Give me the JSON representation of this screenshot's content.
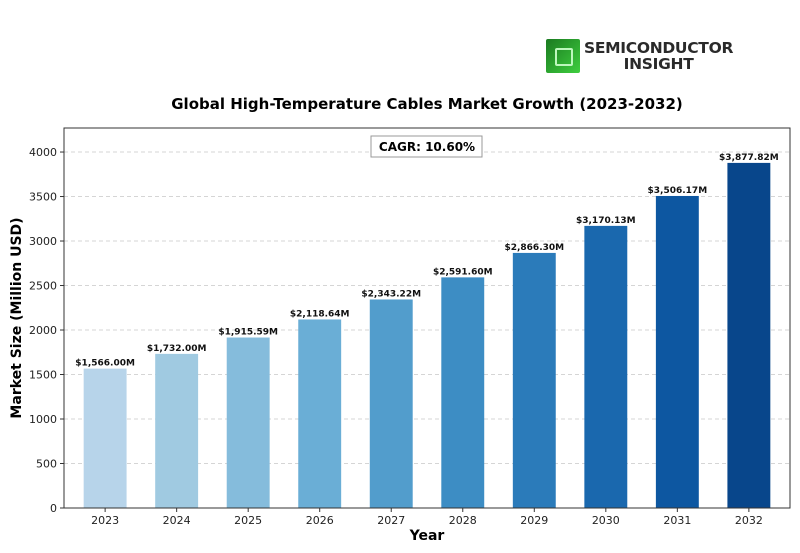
{
  "logo": {
    "line1": "SEMICONDUCTOR",
    "line2": "INSIGHT"
  },
  "chart_data": {
    "type": "bar",
    "title": "Global High-Temperature Cables Market Growth (2023-2032)",
    "xlabel": "Year",
    "ylabel": "Market Size (Million USD)",
    "categories": [
      "2023",
      "2024",
      "2025",
      "2026",
      "2027",
      "2028",
      "2029",
      "2030",
      "2031",
      "2032"
    ],
    "values": [
      1566.0,
      1732.0,
      1915.59,
      2118.64,
      2343.22,
      2591.6,
      2866.3,
      3170.13,
      3506.17,
      3877.82
    ],
    "data_labels": [
      "$1,566.00M",
      "$1,732.00M",
      "$1,915.59M",
      "$2,118.64M",
      "$2,343.22M",
      "$2,591.60M",
      "$2,866.30M",
      "$3,170.13M",
      "$3,506.17M",
      "$3,877.82M"
    ],
    "bar_colors": [
      "#b7d4ea",
      "#a0cae1",
      "#85bcdc",
      "#6aaed6",
      "#529dcc",
      "#3d8dc4",
      "#2b7bba",
      "#1a68ae",
      "#0d57a1",
      "#08468b"
    ],
    "ylim": [
      0,
      4270
    ],
    "yticks": [
      0,
      500,
      1000,
      1500,
      2000,
      2500,
      3000,
      3500,
      4000
    ],
    "grid": true,
    "annotation": "CAGR: 10.60%"
  }
}
